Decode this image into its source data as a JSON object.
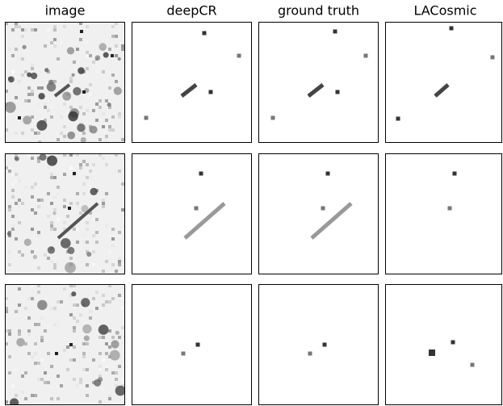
{
  "column_titles": [
    "image",
    "deepCR",
    "ground truth",
    "LACosmic"
  ]
}
